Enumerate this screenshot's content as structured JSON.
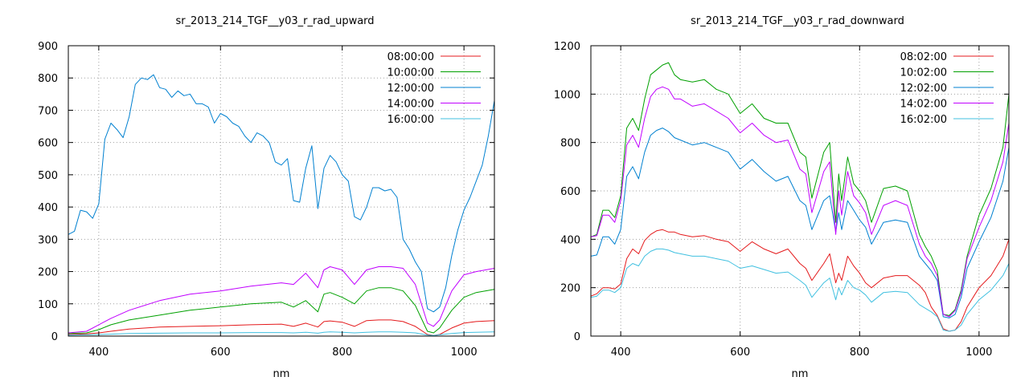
{
  "chart_data": [
    {
      "type": "line",
      "title": "sr_2013_214_TGF__y03_r_rad_upward",
      "xlabel": "nm",
      "ylabel": "",
      "xlim": [
        350,
        1050
      ],
      "ylim": [
        0,
        900
      ],
      "xticks": [
        400,
        600,
        800,
        1000
      ],
      "yticks": [
        0,
        100,
        200,
        300,
        400,
        500,
        600,
        700,
        800,
        900
      ],
      "grid": true,
      "legend_position": "top-right",
      "series": [
        {
          "name": "08:00:00",
          "color": "#e41a1c",
          "x": [
            350,
            380,
            400,
            420,
            450,
            500,
            550,
            600,
            650,
            700,
            720,
            740,
            760,
            770,
            780,
            800,
            820,
            840,
            860,
            880,
            900,
            920,
            940,
            950,
            960,
            980,
            1000,
            1020,
            1050
          ],
          "y": [
            5,
            7,
            10,
            15,
            22,
            28,
            30,
            32,
            35,
            37,
            30,
            40,
            28,
            45,
            47,
            43,
            30,
            48,
            50,
            50,
            45,
            30,
            5,
            2,
            5,
            25,
            40,
            45,
            48
          ]
        },
        {
          "name": "10:00:00",
          "color": "#00a000",
          "x": [
            350,
            380,
            400,
            420,
            450,
            500,
            550,
            600,
            650,
            700,
            720,
            740,
            760,
            770,
            780,
            800,
            820,
            840,
            860,
            880,
            900,
            920,
            940,
            950,
            960,
            980,
            1000,
            1020,
            1050
          ],
          "y": [
            8,
            10,
            20,
            35,
            50,
            65,
            80,
            90,
            100,
            105,
            90,
            110,
            75,
            130,
            135,
            120,
            100,
            140,
            150,
            150,
            140,
            95,
            15,
            10,
            25,
            80,
            120,
            135,
            145
          ]
        },
        {
          "name": "12:00:00",
          "color": "#0080d0",
          "x": [
            350,
            360,
            370,
            380,
            390,
            400,
            410,
            420,
            430,
            440,
            450,
            460,
            470,
            480,
            490,
            500,
            510,
            520,
            530,
            540,
            550,
            560,
            570,
            580,
            590,
            600,
            610,
            620,
            630,
            640,
            650,
            660,
            670,
            680,
            690,
            700,
            710,
            720,
            730,
            740,
            750,
            760,
            770,
            780,
            790,
            800,
            810,
            820,
            830,
            840,
            850,
            860,
            870,
            880,
            890,
            900,
            910,
            920,
            930,
            940,
            950,
            960,
            970,
            980,
            990,
            1000,
            1010,
            1020,
            1030,
            1040,
            1050
          ],
          "y": [
            315,
            325,
            390,
            385,
            365,
            410,
            610,
            660,
            640,
            615,
            680,
            780,
            800,
            795,
            810,
            770,
            765,
            740,
            760,
            745,
            750,
            720,
            720,
            710,
            660,
            690,
            680,
            660,
            650,
            620,
            600,
            630,
            620,
            600,
            540,
            530,
            550,
            420,
            415,
            520,
            590,
            395,
            520,
            560,
            540,
            500,
            480,
            370,
            360,
            400,
            460,
            460,
            450,
            455,
            430,
            300,
            270,
            230,
            200,
            85,
            75,
            90,
            150,
            250,
            330,
            390,
            430,
            480,
            530,
            620,
            730
          ]
        },
        {
          "name": "14:00:00",
          "color": "#c000ff",
          "x": [
            350,
            380,
            400,
            420,
            450,
            500,
            550,
            600,
            650,
            700,
            720,
            740,
            760,
            770,
            780,
            800,
            820,
            840,
            860,
            880,
            900,
            920,
            940,
            950,
            960,
            980,
            1000,
            1020,
            1050
          ],
          "y": [
            10,
            15,
            35,
            55,
            80,
            110,
            130,
            140,
            155,
            165,
            160,
            195,
            150,
            205,
            215,
            205,
            160,
            205,
            215,
            215,
            210,
            160,
            40,
            30,
            50,
            140,
            190,
            200,
            210
          ]
        },
        {
          "name": "16:00:00",
          "color": "#40c0e0",
          "x": [
            350,
            380,
            400,
            420,
            450,
            500,
            550,
            600,
            650,
            700,
            720,
            740,
            760,
            770,
            780,
            800,
            820,
            840,
            860,
            880,
            900,
            920,
            940,
            950,
            960,
            980,
            1000,
            1020,
            1050
          ],
          "y": [
            3,
            4,
            5,
            6,
            8,
            9,
            10,
            10,
            11,
            11,
            10,
            12,
            9,
            12,
            13,
            12,
            10,
            12,
            13,
            13,
            12,
            10,
            3,
            2,
            4,
            8,
            11,
            12,
            13
          ]
        }
      ]
    },
    {
      "type": "line",
      "title": "sr_2013_214_TGF__y03_r_rad_downward",
      "xlabel": "nm",
      "ylabel": "",
      "xlim": [
        350,
        1050
      ],
      "ylim": [
        0,
        1200
      ],
      "xticks": [
        400,
        600,
        800,
        1000
      ],
      "yticks": [
        0,
        200,
        400,
        600,
        800,
        1000,
        1200
      ],
      "grid": true,
      "legend_position": "top-right",
      "series": [
        {
          "name": "08:02:00",
          "color": "#e41a1c",
          "x": [
            350,
            360,
            370,
            380,
            390,
            400,
            410,
            420,
            430,
            440,
            450,
            460,
            470,
            480,
            490,
            500,
            520,
            540,
            560,
            580,
            600,
            620,
            640,
            660,
            680,
            700,
            710,
            720,
            740,
            750,
            760,
            765,
            770,
            780,
            790,
            800,
            810,
            820,
            840,
            860,
            880,
            900,
            910,
            920,
            930,
            940,
            950,
            960,
            970,
            980,
            1000,
            1020,
            1040,
            1050
          ],
          "y": [
            165,
            175,
            200,
            200,
            195,
            215,
            320,
            360,
            340,
            395,
            420,
            435,
            440,
            430,
            430,
            420,
            410,
            415,
            400,
            390,
            350,
            390,
            360,
            340,
            360,
            300,
            280,
            230,
            300,
            340,
            220,
            260,
            230,
            330,
            290,
            260,
            220,
            200,
            240,
            250,
            250,
            210,
            180,
            120,
            85,
            30,
            20,
            25,
            60,
            120,
            200,
            250,
            330,
            400
          ]
        },
        {
          "name": "10:02:00",
          "color": "#00a000",
          "x": [
            350,
            360,
            370,
            380,
            390,
            400,
            410,
            420,
            430,
            440,
            450,
            460,
            470,
            480,
            490,
            500,
            520,
            540,
            560,
            580,
            600,
            620,
            640,
            660,
            680,
            700,
            710,
            720,
            740,
            750,
            760,
            765,
            770,
            780,
            790,
            800,
            810,
            820,
            840,
            860,
            880,
            900,
            910,
            920,
            930,
            940,
            950,
            960,
            970,
            980,
            1000,
            1020,
            1040,
            1050
          ],
          "y": [
            410,
            420,
            520,
            520,
            490,
            580,
            860,
            900,
            850,
            980,
            1080,
            1100,
            1120,
            1130,
            1080,
            1060,
            1050,
            1060,
            1020,
            1000,
            920,
            960,
            900,
            880,
            880,
            760,
            740,
            570,
            760,
            800,
            470,
            670,
            560,
            740,
            630,
            600,
            560,
            470,
            610,
            620,
            600,
            420,
            370,
            330,
            270,
            90,
            85,
            110,
            190,
            330,
            500,
            610,
            780,
            1000
          ]
        },
        {
          "name": "12:02:00",
          "color": "#0080d0",
          "x": [
            350,
            360,
            370,
            380,
            390,
            400,
            410,
            420,
            430,
            440,
            450,
            460,
            470,
            480,
            490,
            500,
            520,
            540,
            560,
            580,
            600,
            620,
            640,
            660,
            680,
            700,
            710,
            720,
            740,
            750,
            760,
            765,
            770,
            780,
            790,
            800,
            810,
            820,
            840,
            860,
            880,
            900,
            910,
            920,
            930,
            940,
            950,
            960,
            970,
            980,
            1000,
            1020,
            1040,
            1050
          ],
          "y": [
            330,
            335,
            410,
            410,
            380,
            440,
            660,
            700,
            650,
            760,
            830,
            850,
            860,
            845,
            820,
            810,
            790,
            800,
            780,
            760,
            690,
            730,
            680,
            640,
            660,
            560,
            540,
            440,
            560,
            580,
            430,
            510,
            440,
            560,
            520,
            480,
            450,
            380,
            470,
            480,
            470,
            330,
            300,
            270,
            230,
            80,
            75,
            90,
            160,
            280,
            390,
            490,
            640,
            780
          ]
        },
        {
          "name": "14:02:00",
          "color": "#c000ff",
          "x": [
            350,
            360,
            370,
            380,
            390,
            400,
            410,
            420,
            430,
            440,
            450,
            460,
            470,
            480,
            490,
            500,
            520,
            540,
            560,
            580,
            600,
            620,
            640,
            660,
            680,
            700,
            710,
            720,
            740,
            750,
            760,
            765,
            770,
            780,
            790,
            800,
            810,
            820,
            840,
            860,
            880,
            900,
            910,
            920,
            930,
            940,
            950,
            960,
            970,
            980,
            1000,
            1020,
            1040,
            1050
          ],
          "y": [
            410,
            415,
            500,
            500,
            470,
            560,
            790,
            830,
            780,
            900,
            990,
            1020,
            1030,
            1020,
            980,
            980,
            950,
            960,
            930,
            900,
            840,
            880,
            830,
            800,
            810,
            690,
            670,
            510,
            680,
            720,
            420,
            600,
            500,
            680,
            580,
            550,
            510,
            420,
            540,
            560,
            540,
            380,
            330,
            300,
            250,
            90,
            80,
            105,
            180,
            320,
            450,
            560,
            720,
            880
          ]
        },
        {
          "name": "16:02:00",
          "color": "#40c0e0",
          "x": [
            350,
            360,
            370,
            380,
            390,
            400,
            410,
            420,
            430,
            440,
            450,
            460,
            470,
            480,
            490,
            500,
            520,
            540,
            560,
            580,
            600,
            620,
            640,
            660,
            680,
            700,
            710,
            720,
            740,
            750,
            760,
            765,
            770,
            780,
            790,
            800,
            810,
            820,
            840,
            860,
            880,
            900,
            910,
            920,
            930,
            940,
            950,
            960,
            970,
            980,
            1000,
            1020,
            1040,
            1050
          ],
          "y": [
            160,
            165,
            190,
            190,
            180,
            200,
            280,
            300,
            290,
            330,
            350,
            360,
            360,
            355,
            345,
            340,
            330,
            330,
            320,
            310,
            280,
            290,
            275,
            260,
            265,
            230,
            210,
            160,
            220,
            240,
            150,
            200,
            170,
            230,
            200,
            190,
            170,
            140,
            180,
            185,
            180,
            130,
            115,
            100,
            80,
            25,
            20,
            25,
            45,
            90,
            150,
            190,
            250,
            300
          ]
        }
      ]
    }
  ]
}
